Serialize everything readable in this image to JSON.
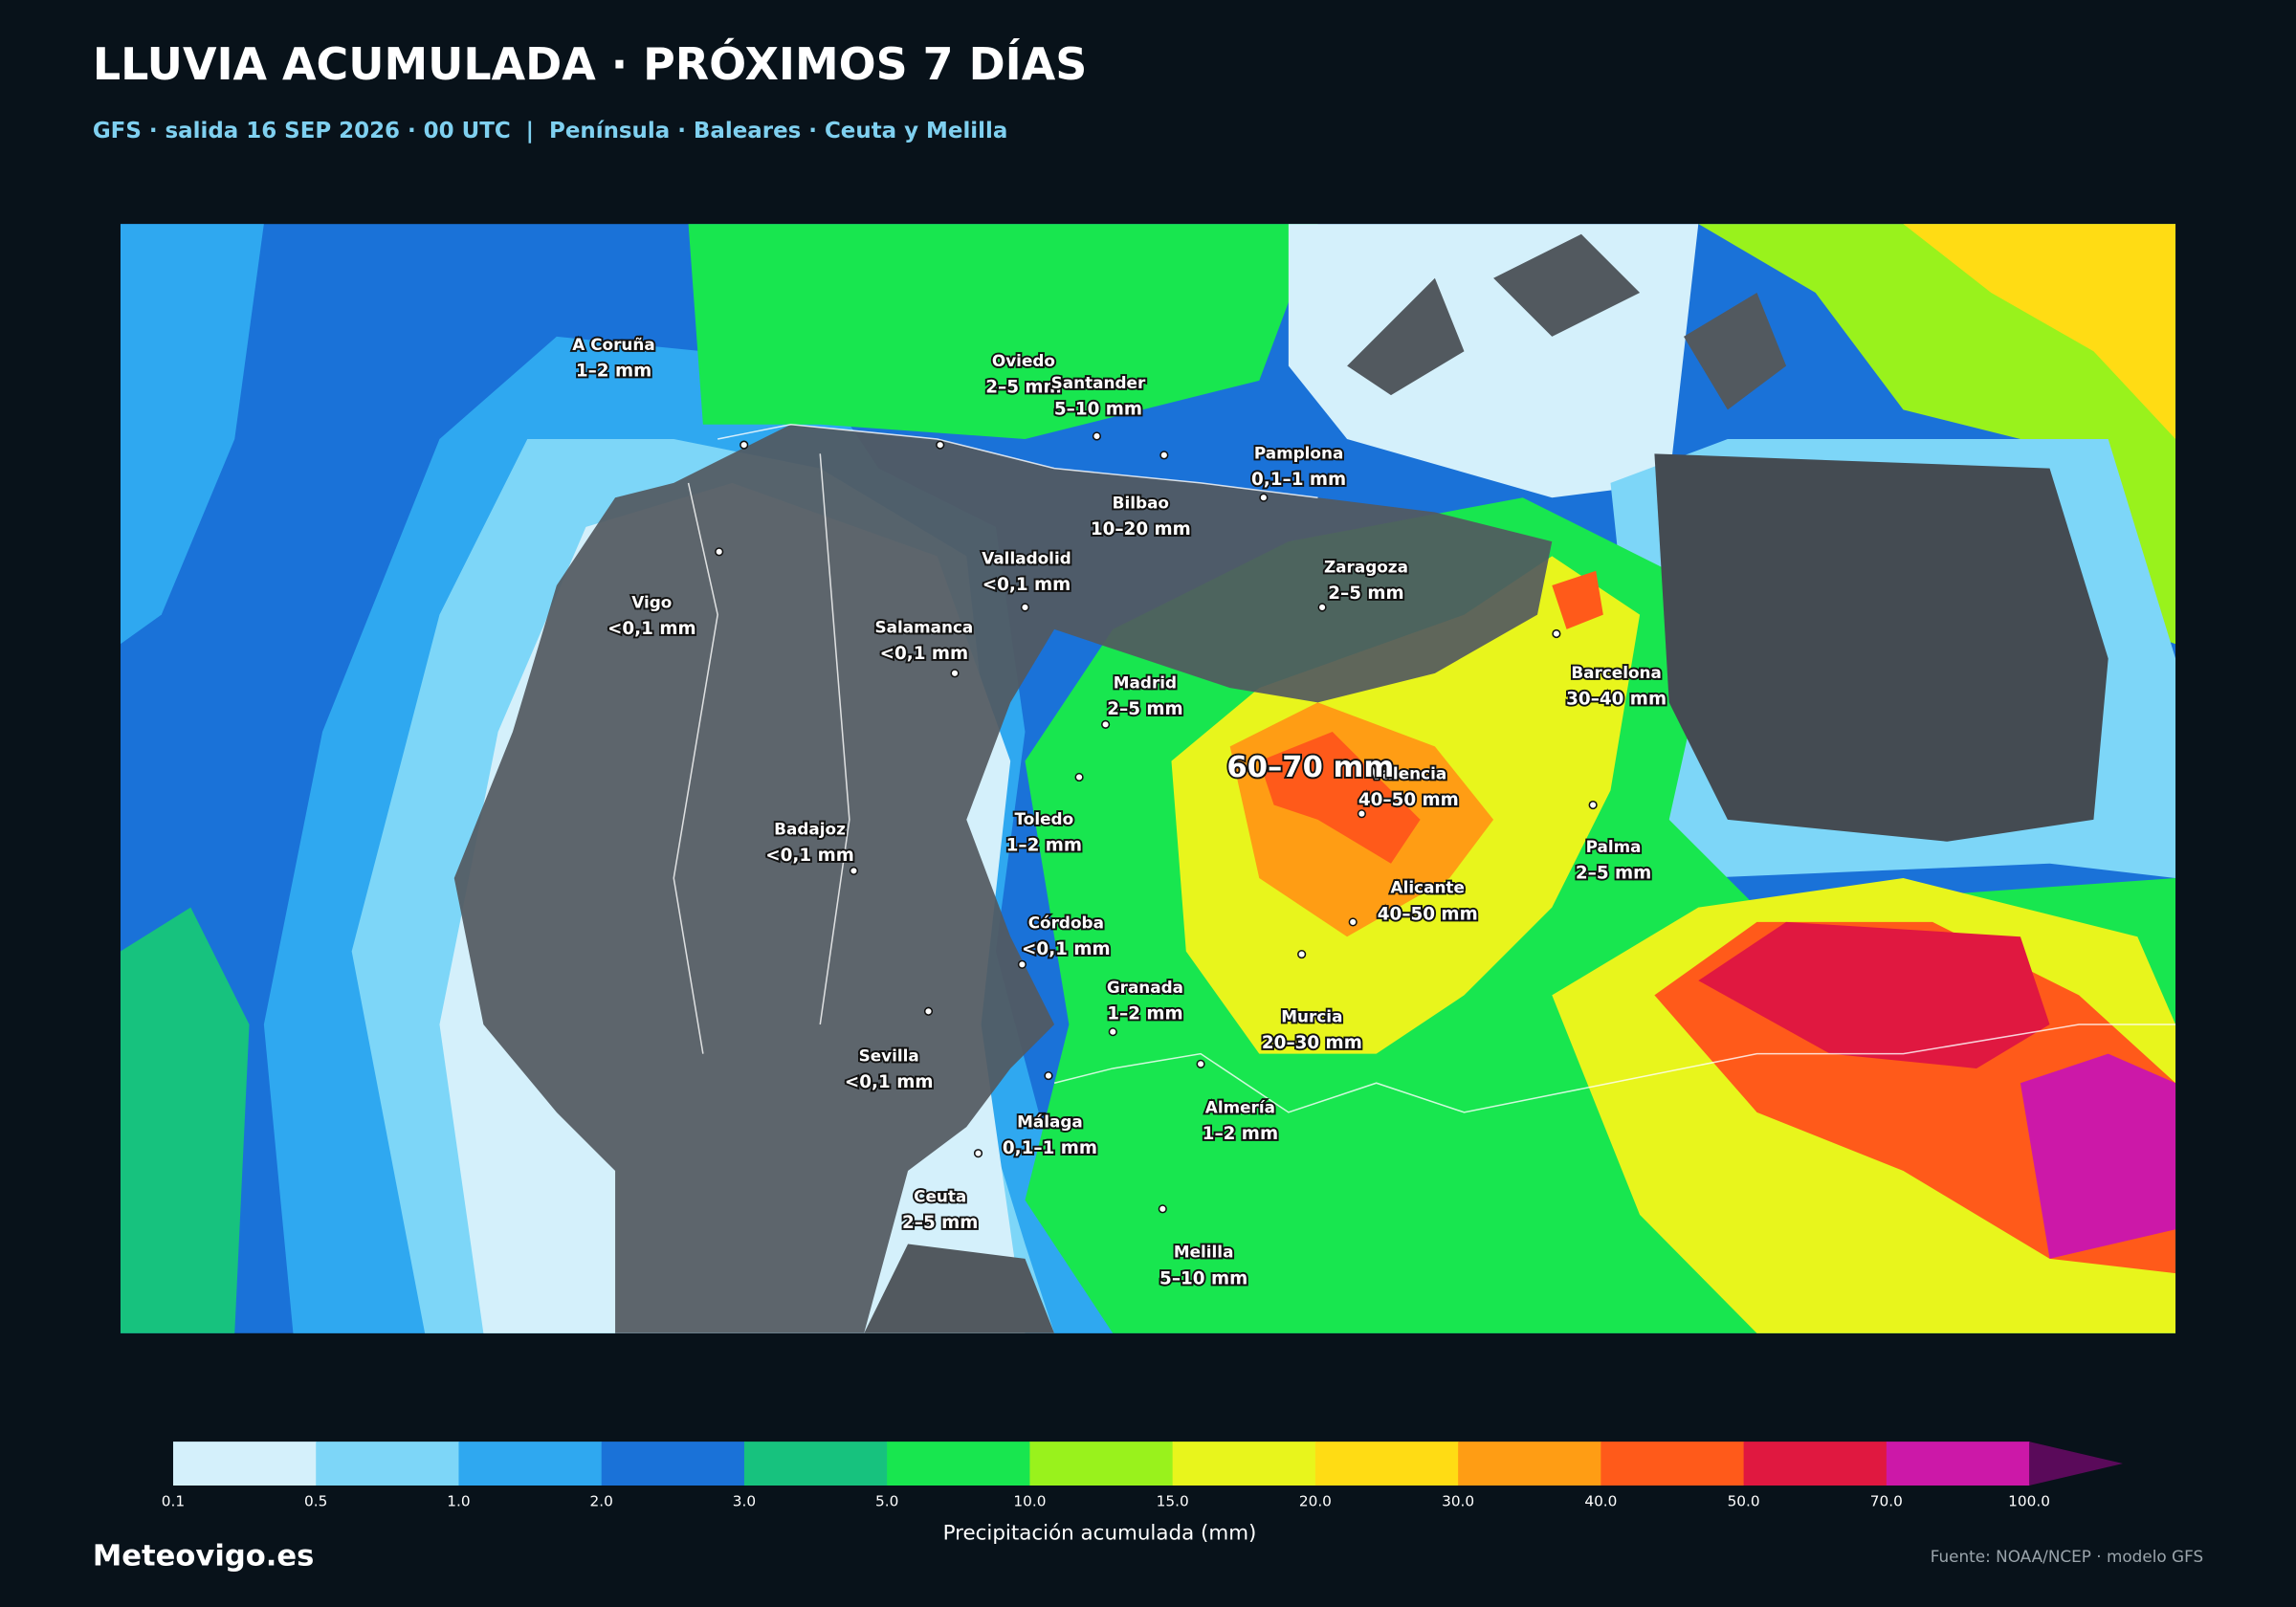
{
  "header": {
    "title": "LLUVIA ACUMULADA · PRÓXIMOS 7 DÍAS",
    "subtitle": "GFS · salida 16 SEP 2026 · 00 UTC  |  Península · Baleares · Ceuta y Melilla"
  },
  "map": {
    "highlight": "60–70 mm",
    "cities": [
      {
        "name": "A Coruña",
        "amount": "1–2 mm"
      },
      {
        "name": "Oviedo",
        "amount": "2–5 mm"
      },
      {
        "name": "Santander",
        "amount": "5–10 mm"
      },
      {
        "name": "Pamplona",
        "amount": "0,1–1 mm"
      },
      {
        "name": "Bilbao",
        "amount": "10–20 mm"
      },
      {
        "name": "Valladolid",
        "amount": "<0,1 mm"
      },
      {
        "name": "Zaragoza",
        "amount": "2–5 mm"
      },
      {
        "name": "Vigo",
        "amount": "<0,1 mm"
      },
      {
        "name": "Salamanca",
        "amount": "<0,1 mm"
      },
      {
        "name": "Barcelona",
        "amount": "30–40 mm"
      },
      {
        "name": "Madrid",
        "amount": "2–5 mm"
      },
      {
        "name": "Valencia",
        "amount": "40–50 mm"
      },
      {
        "name": "Toledo",
        "amount": "1–2 mm"
      },
      {
        "name": "Badajoz",
        "amount": "<0,1 mm"
      },
      {
        "name": "Palma",
        "amount": "2–5 mm"
      },
      {
        "name": "Alicante",
        "amount": "40–50 mm"
      },
      {
        "name": "Córdoba",
        "amount": "<0,1 mm"
      },
      {
        "name": "Granada",
        "amount": "1–2 mm"
      },
      {
        "name": "Murcia",
        "amount": "20–30 mm"
      },
      {
        "name": "Sevilla",
        "amount": "<0,1 mm"
      },
      {
        "name": "Almería",
        "amount": "1–2 mm"
      },
      {
        "name": "Málaga",
        "amount": "0,1–1 mm"
      },
      {
        "name": "Ceuta",
        "amount": "2–5 mm"
      },
      {
        "name": "Melilla",
        "amount": "5–10 mm"
      }
    ]
  },
  "legend": {
    "label": "Precipitación acumulada (mm)",
    "ticks": [
      "0.1",
      "0.5",
      "1.0",
      "2.0",
      "3.0",
      "5.0",
      "10.0",
      "15.0",
      "20.0",
      "30.0",
      "40.0",
      "50.0",
      "70.0",
      "100.0"
    ],
    "colors": [
      "#d4f0fb",
      "#7dd6f8",
      "#2fa8f0",
      "#1a72d8",
      "#17c27e",
      "#18e64f",
      "#99f21c",
      "#e8f51c",
      "#ffdc14",
      "#ff9d14",
      "#ff5a1a",
      "#e01840",
      "#cc18a8",
      "#5a0a5a"
    ]
  },
  "footer": {
    "brand": "Meteovigo.es",
    "source": "Fuente: NOAA/NCEP · modelo GFS"
  }
}
